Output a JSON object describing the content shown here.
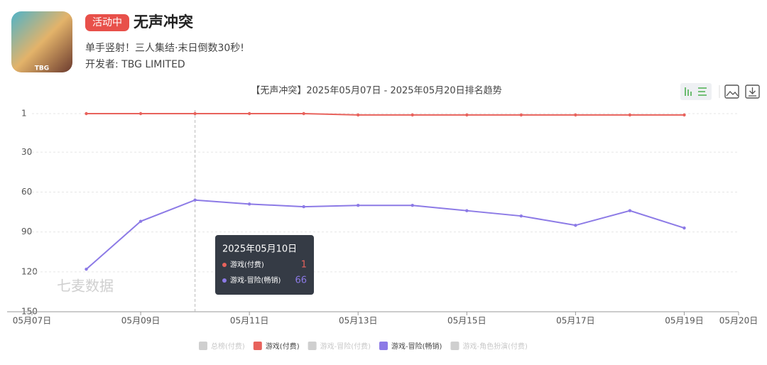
{
  "app": {
    "badge": "活动中",
    "title": "无声冲突",
    "subtitle": "单手竖射！三人集结·末日倒数30秒!",
    "developer": "开发者: TBG LIMITED",
    "icon_label": "TBG"
  },
  "watermark": "七麦数据",
  "chart_data": {
    "type": "line",
    "title": "【无声冲突】2025年05月07日 - 2025年05月20日排名趋势",
    "categories": [
      "05月07日",
      null,
      "05月09日",
      null,
      "05月11日",
      null,
      "05月13日",
      null,
      "05月15日",
      null,
      "05月17日",
      null,
      "05月19日",
      "05月20日"
    ],
    "series": [
      {
        "name": "游戏(付费)",
        "color": "#e8625c",
        "values": [
          null,
          1,
          1,
          1,
          1,
          1,
          2,
          2,
          2,
          2,
          2,
          2,
          2,
          null
        ]
      },
      {
        "name": "游戏-冒险(畅销)",
        "color": "#8c7ae6",
        "values": [
          null,
          118,
          82,
          66,
          69,
          71,
          70,
          70,
          74,
          78,
          85,
          74,
          87,
          null
        ]
      }
    ],
    "ylim": [
      1,
      150
    ],
    "yticks": [
      1,
      30,
      60,
      90,
      120,
      150
    ],
    "y_reversed": true,
    "grid": true,
    "legend": [
      {
        "name": "总榜(付费)",
        "color": "#cfcfcf"
      },
      {
        "name": "游戏(付费)",
        "color": "#e8625c"
      },
      {
        "name": "游戏-冒险(付费)",
        "color": "#cfcfcf"
      },
      {
        "name": "游戏-冒险(畅销)",
        "color": "#8c7ae6"
      },
      {
        "name": "游戏-角色扮演(付费)",
        "color": "#cfcfcf"
      }
    ],
    "tooltip": {
      "title": "2025年05月10日",
      "category_index": 3
    }
  }
}
